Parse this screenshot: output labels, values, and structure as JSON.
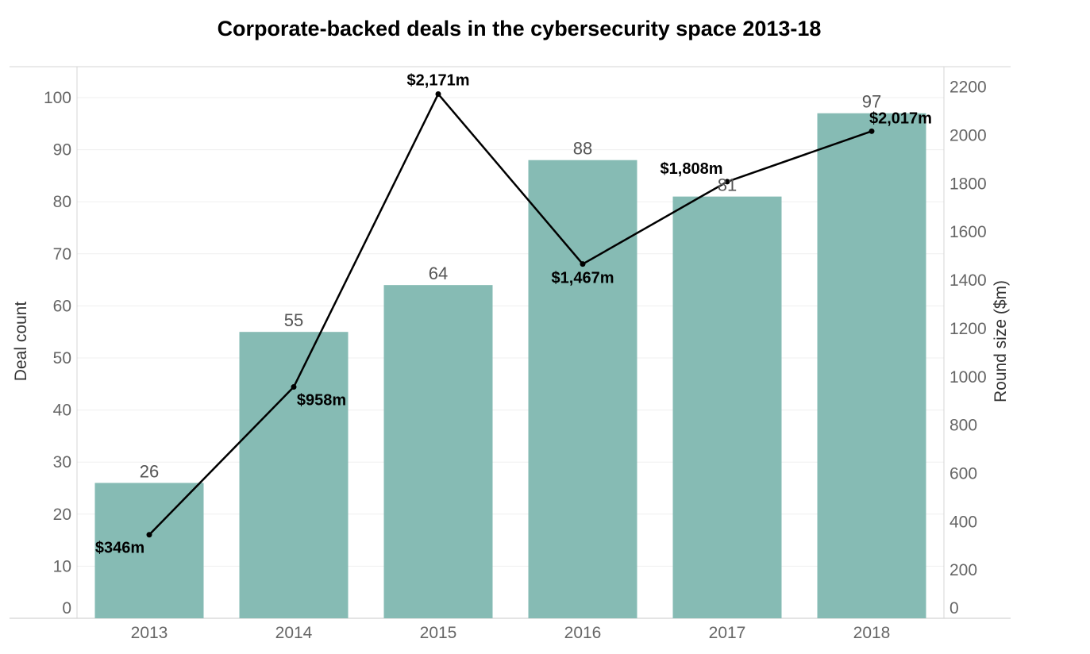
{
  "chart_data": {
    "type": "bar",
    "title": "Corporate-backed deals in the cybersecurity space 2013-18",
    "categories": [
      "2013",
      "2014",
      "2015",
      "2016",
      "2017",
      "2018"
    ],
    "bar_series": {
      "name": "Deal count",
      "values": [
        26,
        55,
        64,
        88,
        81,
        97
      ],
      "labels": [
        "26",
        "55",
        "64",
        "88",
        "81",
        "97"
      ],
      "color": "#86BBB4"
    },
    "line_series": {
      "name": "Round size ($m)",
      "values": [
        346,
        958,
        2171,
        1467,
        1808,
        2017
      ],
      "labels": [
        "$346m",
        "$958m",
        "$2,171m",
        "$1,467m",
        "$1,808m",
        "$2,017m"
      ],
      "color": "#000000"
    },
    "ylabel_left": "Deal count",
    "ylabel_right": "Round size ($m)",
    "ylim_left": [
      0,
      106
    ],
    "ylim_right": [
      0,
      2285
    ],
    "yticks_left": [
      "0",
      "10",
      "20",
      "30",
      "40",
      "50",
      "60",
      "70",
      "80",
      "90",
      "100"
    ],
    "yticks_right": [
      "0",
      "200",
      "400",
      "600",
      "800",
      "1000",
      "1200",
      "1400",
      "1600",
      "1800",
      "2000",
      "2200"
    ],
    "grid": true,
    "legend": "none"
  }
}
